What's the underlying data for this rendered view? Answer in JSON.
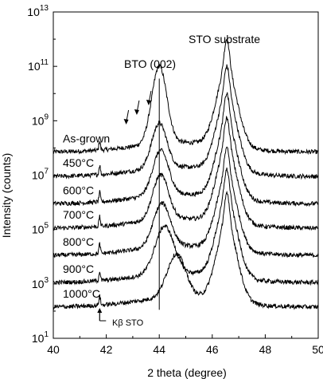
{
  "chart_data": {
    "type": "line",
    "xlabel": "2 theta (degree)",
    "ylabel": "Intensity (counts)",
    "xlim": [
      40,
      50
    ],
    "ylim_log10": [
      1,
      13
    ],
    "y_scale": "log",
    "x_ticks": [
      "40",
      "42",
      "44",
      "46",
      "48",
      "50"
    ],
    "y_ticks": [
      {
        "base": "10",
        "exp": "1"
      },
      {
        "base": "10",
        "exp": "3"
      },
      {
        "base": "10",
        "exp": "5"
      },
      {
        "base": "10",
        "exp": "7"
      },
      {
        "base": "10",
        "exp": "9"
      },
      {
        "base": "10",
        "exp": "11"
      },
      {
        "base": "10",
        "exp": "13"
      }
    ],
    "annotations": {
      "bto_peak": "BTO (002)",
      "sto_peak": "STO substrate",
      "kbeta": "Kβ STO"
    },
    "reference_line_x": 44.0,
    "series": [
      {
        "name": "As-grown",
        "baseline": 7.85,
        "bto_center": 44.0,
        "bto_height": 2.85,
        "bto_width": 0.4,
        "sto_height": 3.95
      },
      {
        "name": "450°C",
        "baseline": 6.95,
        "bto_center": 44.0,
        "bto_height": 1.65,
        "bto_width": 0.4,
        "sto_height": 3.85
      },
      {
        "name": "600°C",
        "baseline": 5.95,
        "bto_center": 44.05,
        "bto_height": 1.65,
        "bto_width": 0.42,
        "sto_height": 3.85
      },
      {
        "name": "700°C",
        "baseline": 5.05,
        "bto_center": 44.05,
        "bto_height": 1.65,
        "bto_width": 0.42,
        "sto_height": 3.85
      },
      {
        "name": "800°C",
        "baseline": 4.05,
        "bto_center": 44.1,
        "bto_height": 1.6,
        "bto_width": 0.45,
        "sto_height": 3.75
      },
      {
        "name": "900°C",
        "baseline": 3.05,
        "bto_center": 44.2,
        "bto_height": 1.75,
        "bto_width": 0.5,
        "sto_height": 3.95
      },
      {
        "name": "1000°C",
        "baseline": 2.15,
        "bto_center": 44.65,
        "bto_height": 1.6,
        "bto_width": 0.5,
        "sto_height": 3.95
      }
    ],
    "sto_center": 46.55,
    "kbeta_x": 41.75,
    "arrows_x": [
      42.75,
      43.15,
      43.6
    ],
    "grid": false
  }
}
